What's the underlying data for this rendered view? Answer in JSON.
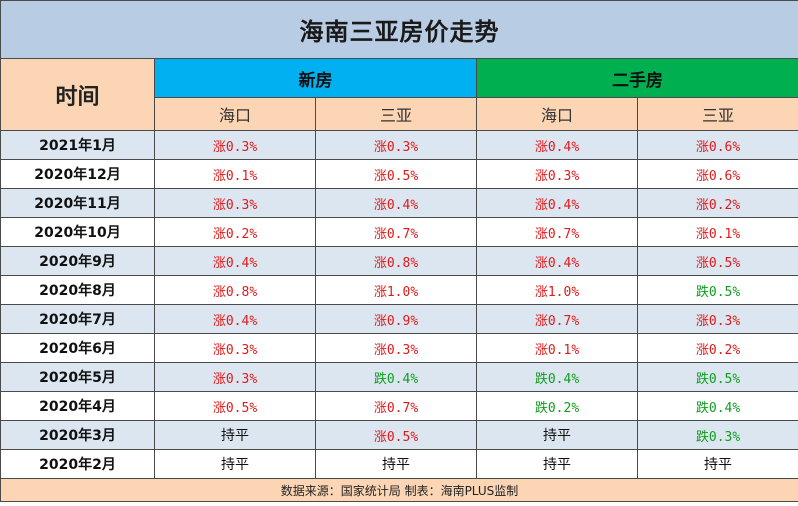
{
  "title": "海南三亚房价走势",
  "header": {
    "time_label": "时间",
    "new_house": "新房",
    "second_house": "二手房",
    "cities": [
      "海口",
      "三亚",
      "海口",
      "三亚"
    ]
  },
  "rows": [
    {
      "month": "2021年1月",
      "cells": [
        [
          "涨0.3%",
          "up"
        ],
        [
          "涨0.3%",
          "up"
        ],
        [
          "涨0.4%",
          "up"
        ],
        [
          "涨0.6%",
          "up"
        ]
      ]
    },
    {
      "month": "2020年12月",
      "cells": [
        [
          "涨0.1%",
          "up"
        ],
        [
          "涨0.5%",
          "up"
        ],
        [
          "涨0.3%",
          "up"
        ],
        [
          "涨0.6%",
          "up"
        ]
      ]
    },
    {
      "month": "2020年11月",
      "cells": [
        [
          "涨0.3%",
          "up"
        ],
        [
          "涨0.4%",
          "up"
        ],
        [
          "涨0.4%",
          "up"
        ],
        [
          "涨0.2%",
          "up"
        ]
      ]
    },
    {
      "month": "2020年10月",
      "cells": [
        [
          "涨0.2%",
          "up"
        ],
        [
          "涨0.7%",
          "up"
        ],
        [
          "涨0.7%",
          "up"
        ],
        [
          "涨0.1%",
          "up"
        ]
      ]
    },
    {
      "month": "2020年9月",
      "cells": [
        [
          "涨0.4%",
          "up"
        ],
        [
          "涨0.8%",
          "up"
        ],
        [
          "涨0.4%",
          "up"
        ],
        [
          "涨0.5%",
          "up"
        ]
      ]
    },
    {
      "month": "2020年8月",
      "cells": [
        [
          "涨0.8%",
          "up"
        ],
        [
          "涨1.0%",
          "up"
        ],
        [
          "涨1.0%",
          "up"
        ],
        [
          "跌0.5%",
          "down"
        ]
      ]
    },
    {
      "month": "2020年7月",
      "cells": [
        [
          "涨0.4%",
          "up"
        ],
        [
          "涨0.9%",
          "up"
        ],
        [
          "涨0.7%",
          "up"
        ],
        [
          "涨0.3%",
          "up"
        ]
      ]
    },
    {
      "month": "2020年6月",
      "cells": [
        [
          "涨0.3%",
          "up"
        ],
        [
          "涨0.3%",
          "up"
        ],
        [
          "涨0.1%",
          "up"
        ],
        [
          "涨0.2%",
          "up"
        ]
      ]
    },
    {
      "month": "2020年5月",
      "cells": [
        [
          "涨0.3%",
          "up"
        ],
        [
          "跌0.4%",
          "down"
        ],
        [
          "跌0.4%",
          "down"
        ],
        [
          "跌0.5%",
          "down"
        ]
      ]
    },
    {
      "month": "2020年4月",
      "cells": [
        [
          "涨0.5%",
          "up"
        ],
        [
          "涨0.7%",
          "up"
        ],
        [
          "跌0.2%",
          "down"
        ],
        [
          "跌0.4%",
          "down"
        ]
      ]
    },
    {
      "month": "2020年3月",
      "cells": [
        [
          "持平",
          "flat"
        ],
        [
          "涨0.5%",
          "up"
        ],
        [
          "持平",
          "flat"
        ],
        [
          "跌0.3%",
          "down"
        ]
      ]
    },
    {
      "month": "2020年2月",
      "cells": [
        [
          "持平",
          "flat"
        ],
        [
          "持平",
          "flat"
        ],
        [
          "持平",
          "flat"
        ],
        [
          "持平",
          "flat"
        ]
      ]
    }
  ],
  "footer": "数据来源：国家统计局  制表：海南PLUS监制",
  "colors": {
    "title_bg": "#b8cce4",
    "new_house_bg": "#00b0f0",
    "second_house_bg": "#00b050",
    "header_bg": "#fcd5b4",
    "alt_row_bg": "#dce6f1",
    "up": "#e01a1a",
    "down": "#0f9e1e"
  }
}
